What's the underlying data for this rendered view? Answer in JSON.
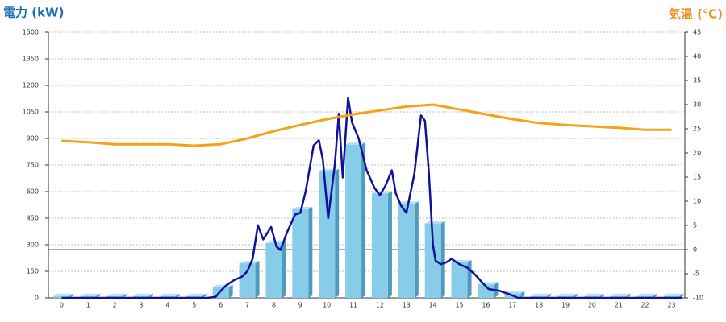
{
  "chart_data": {
    "type": "bar",
    "y_title": "電力 (kW)",
    "y2_title": "気温 (℃)",
    "categories": [
      "0",
      "1",
      "2",
      "3",
      "4",
      "5",
      "6",
      "7",
      "8",
      "9",
      "10",
      "11",
      "12",
      "13",
      "14",
      "15",
      "16",
      "17",
      "18",
      "19",
      "20",
      "21",
      "22",
      "23"
    ],
    "ylim": [
      0,
      1500
    ],
    "yticks": [
      0,
      150,
      300,
      450,
      600,
      750,
      900,
      1050,
      1200,
      1350,
      1500
    ],
    "y2lim": [
      -10,
      45
    ],
    "y2ticks": [
      -10,
      -5,
      0,
      5,
      10,
      15,
      20,
      25,
      30,
      35,
      40,
      45
    ],
    "xlim": [
      -0.5,
      23.5
    ],
    "grid": true,
    "series": [
      {
        "type": "bar",
        "color": "#87cdea",
        "values": [
          10,
          10,
          10,
          10,
          10,
          10,
          60,
          195,
          310,
          500,
          715,
          865,
          590,
          530,
          420,
          200,
          75,
          25,
          10,
          10,
          10,
          10,
          10,
          10
        ]
      },
      {
        "type": "line",
        "color": "#10129a",
        "x": [
          0,
          5.5,
          5.8,
          6.0,
          6.2,
          6.5,
          6.8,
          7.0,
          7.2,
          7.4,
          7.6,
          7.9,
          8.1,
          8.25,
          8.5,
          8.8,
          9.0,
          9.2,
          9.5,
          9.7,
          9.85,
          10.05,
          10.3,
          10.45,
          10.6,
          10.8,
          10.95,
          11.2,
          11.5,
          11.8,
          12.0,
          12.2,
          12.45,
          12.6,
          12.8,
          13.0,
          13.3,
          13.55,
          13.7,
          13.85,
          14.0,
          14.1,
          14.3,
          14.5,
          14.7,
          15.0,
          15.3,
          15.6,
          15.9,
          16.1,
          16.5,
          16.7,
          16.9,
          17.2,
          23.4
        ],
        "values": [
          0,
          0,
          5,
          40,
          70,
          100,
          120,
          150,
          220,
          410,
          330,
          400,
          290,
          270,
          370,
          470,
          480,
          600,
          860,
          890,
          780,
          450,
          750,
          1040,
          680,
          1130,
          990,
          900,
          720,
          620,
          580,
          630,
          720,
          590,
          520,
          480,
          700,
          1030,
          1000,
          700,
          300,
          210,
          190,
          200,
          220,
          190,
          170,
          130,
          80,
          50,
          40,
          30,
          20,
          0,
          0
        ]
      },
      {
        "type": "line",
        "axis": "y2",
        "color": "#f5a316",
        "values": [
          22.5,
          22.2,
          21.8,
          21.8,
          21.8,
          21.5,
          21.8,
          23,
          24.5,
          25.8,
          27,
          28,
          28.8,
          29.6,
          30,
          29,
          28,
          27,
          26.2,
          25.8,
          25.5,
          25.2,
          24.8,
          24.8
        ]
      }
    ]
  }
}
